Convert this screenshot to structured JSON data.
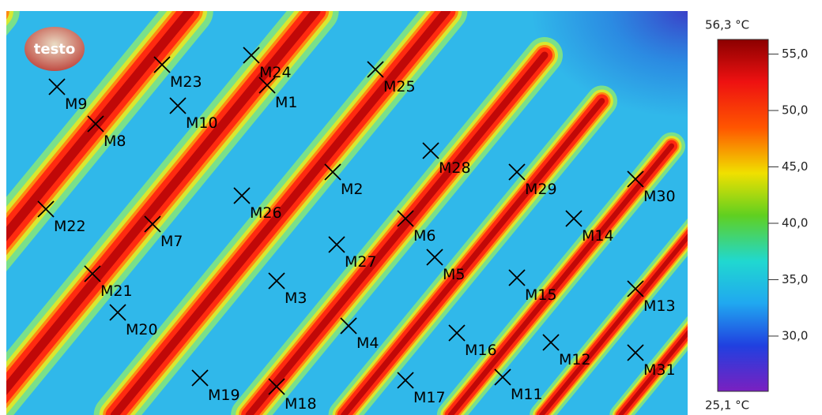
{
  "logo": "testo",
  "markers": [
    "M23",
    "M24",
    "M1",
    "M25",
    "M9",
    "M10",
    "M8",
    "M28",
    "M2",
    "M29",
    "M30",
    "M26",
    "M22",
    "M6",
    "M7",
    "M14",
    "M27",
    "M5",
    "M21",
    "M15",
    "M13",
    "M3",
    "M20",
    "M4",
    "M16",
    "M12",
    "M31",
    "M19",
    "M18",
    "M17",
    "M11"
  ],
  "chart_data": {
    "type": "colorbar",
    "top_label": "56,3 °C",
    "bottom_label": "25,1 °C",
    "ylim": [
      25.1,
      56.3
    ],
    "yticks": [
      {
        "value": 30,
        "label": "30,0"
      },
      {
        "value": 35,
        "label": "35,0"
      },
      {
        "value": 40,
        "label": "40,0"
      },
      {
        "value": 45,
        "label": "45,0"
      },
      {
        "value": 50,
        "label": "50,0"
      },
      {
        "value": 55,
        "label": "55,0"
      }
    ]
  }
}
